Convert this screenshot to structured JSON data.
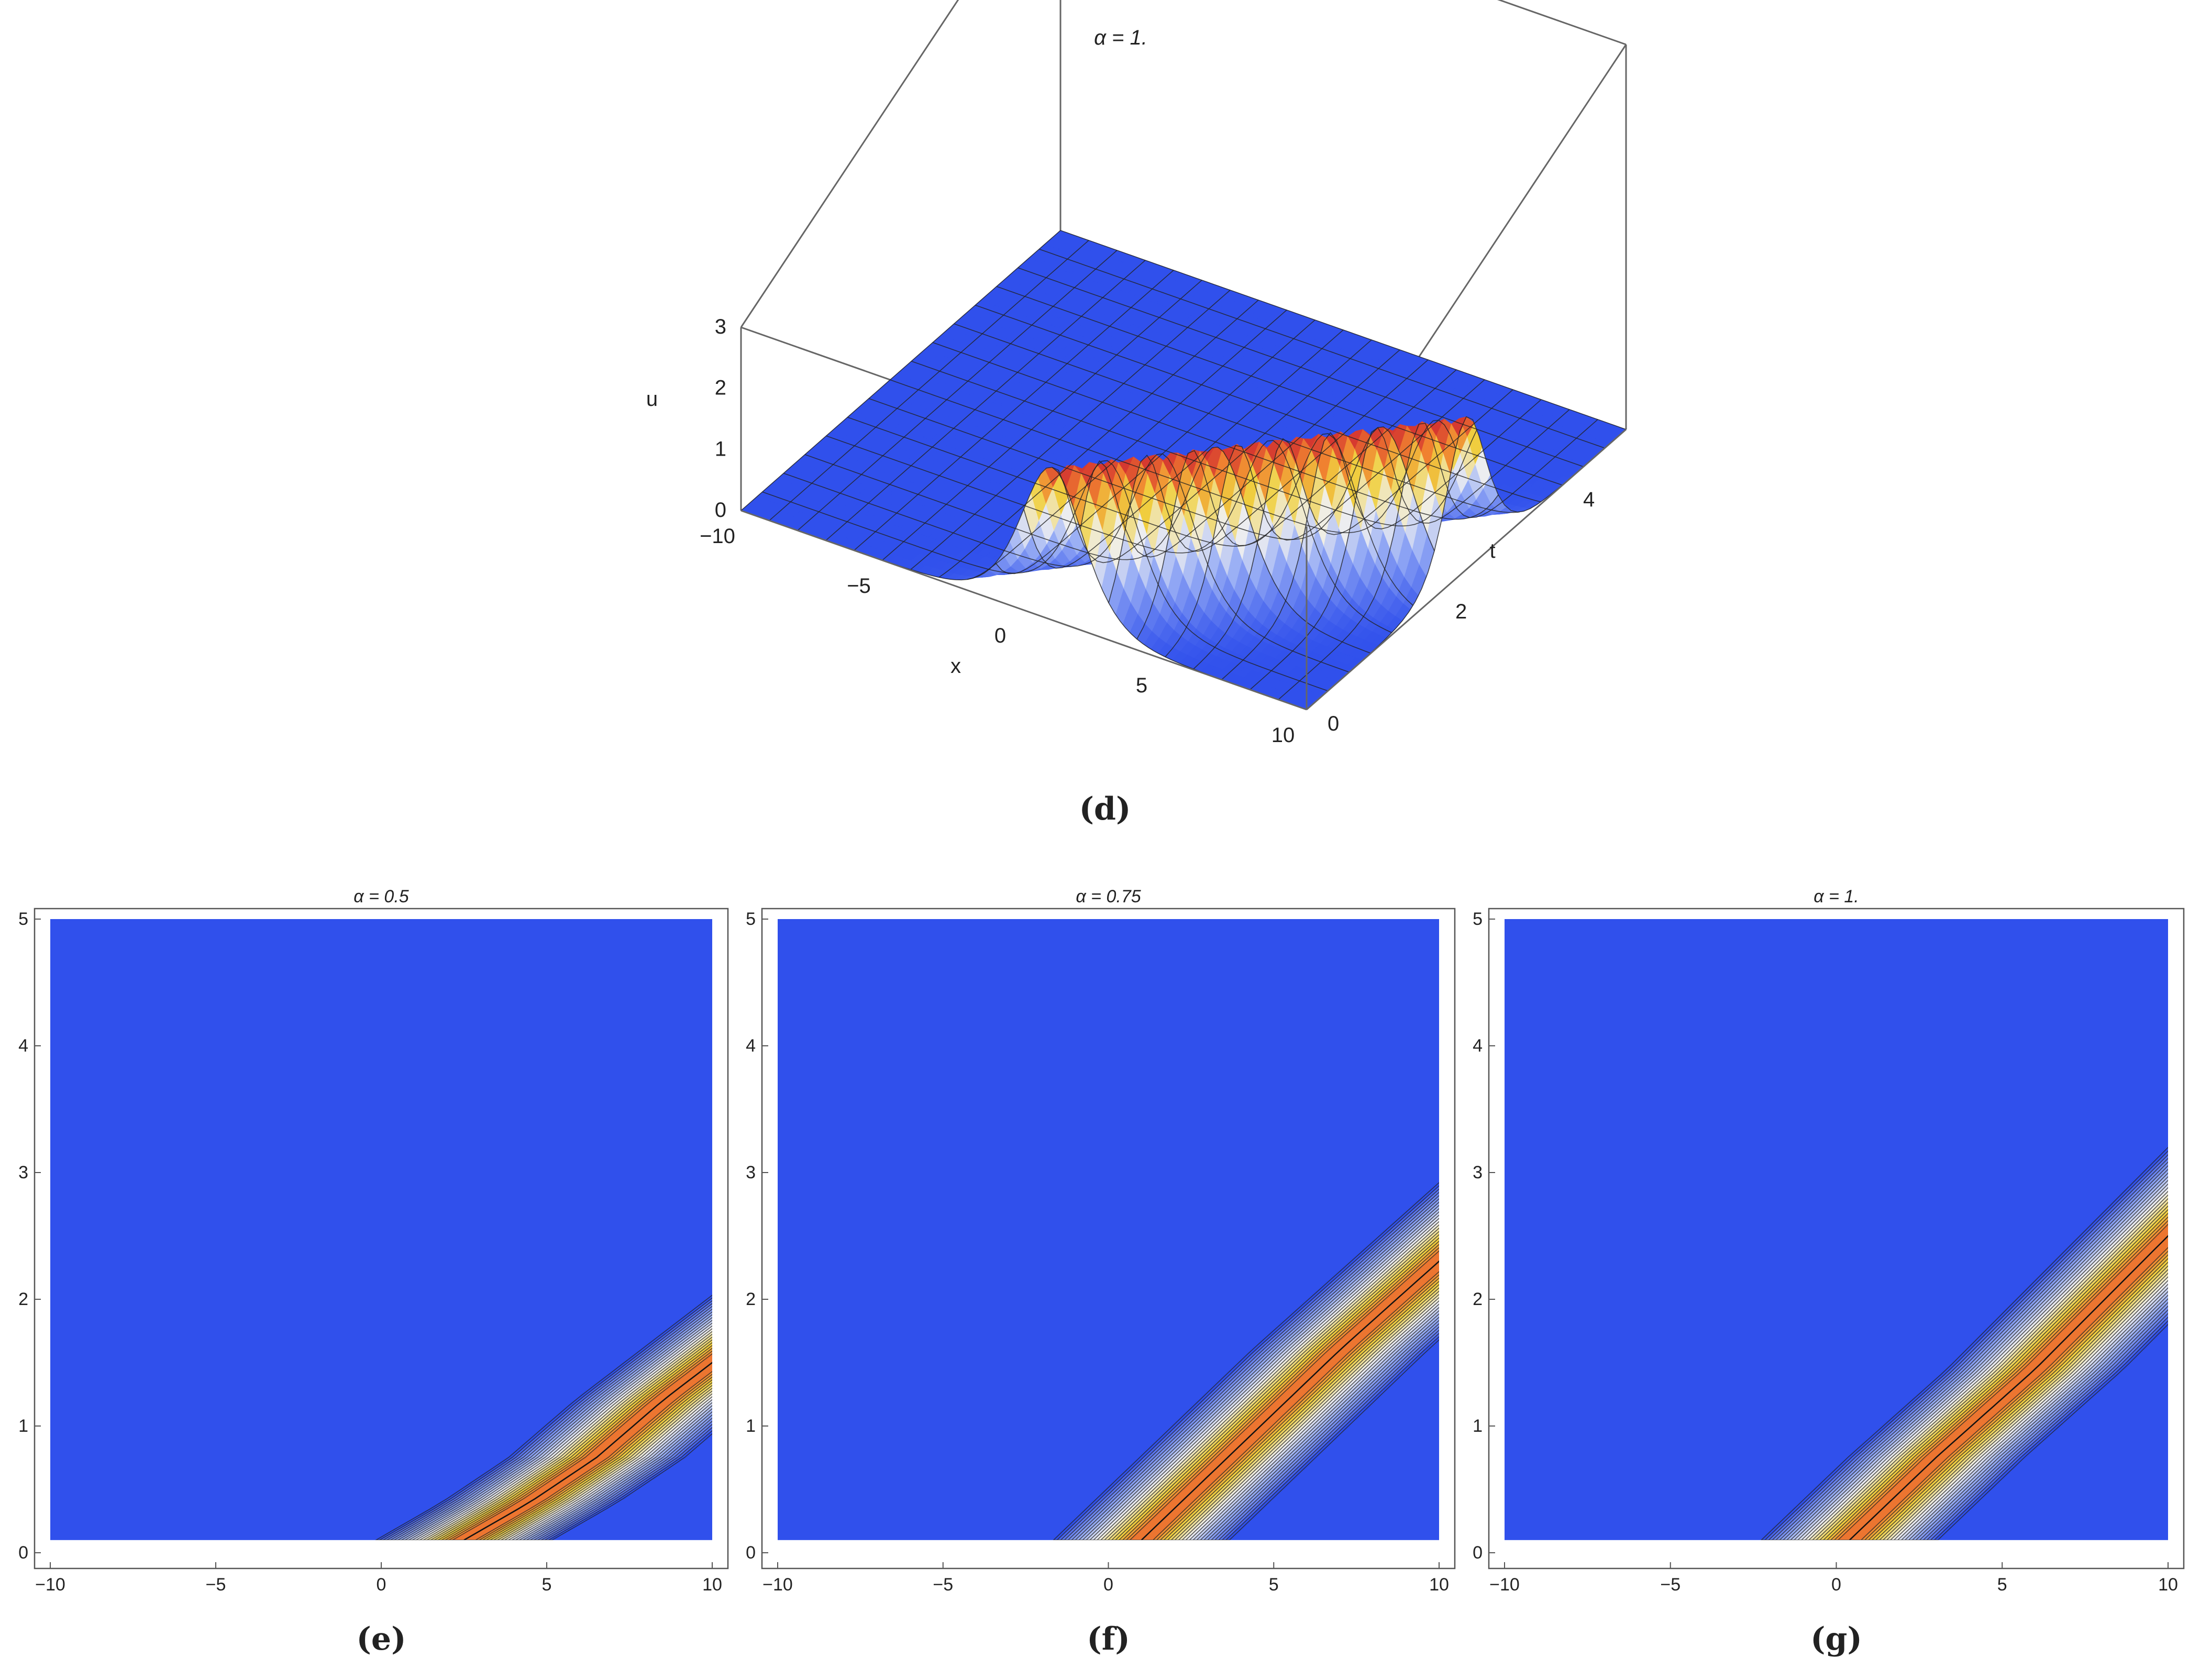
{
  "colors": {
    "background": "#3050ec",
    "band_red": "#cc2030",
    "band_yellow": "#f0d040",
    "band_white": "#f0f0f0",
    "contour_line": "#222222",
    "frame": "#555555",
    "box_edge": "#666666"
  },
  "chart_data": [
    {
      "panel": "d",
      "type": "surface3d",
      "title": "α = 1.",
      "caption": "(d)",
      "xlabel": "x",
      "ylabel": "t",
      "zlabel": "u",
      "x_ticks": [
        "−10",
        "−5",
        "0",
        "5",
        "10"
      ],
      "t_ticks": [
        "0",
        "2",
        "4"
      ],
      "u_ticks": [
        "0",
        "1",
        "2",
        "3"
      ],
      "xlim": [
        -10,
        10
      ],
      "tlim": [
        0,
        5
      ],
      "zlim": [
        0,
        3
      ],
      "alpha": 1.0,
      "peak_amplitude": 2.5,
      "wave_center_x_at_t0": 1,
      "wave_speed": 3.6,
      "wave_width": 1.5
    },
    {
      "panel": "e",
      "type": "contour",
      "title": "α = 0.5",
      "caption": "(e)",
      "x_ticks": [
        "−10",
        "−5",
        "0",
        "5",
        "10"
      ],
      "y_ticks": [
        "0",
        "1",
        "2",
        "3",
        "4",
        "5"
      ],
      "xlim": [
        -10,
        10
      ],
      "ylim": [
        0,
        5
      ],
      "alpha": 0.5,
      "ridge": [
        [
          2.5,
          0.1
        ],
        [
          4.5,
          0.4
        ],
        [
          6.5,
          0.75
        ],
        [
          8.5,
          1.2
        ],
        [
          10,
          1.5
        ]
      ]
    },
    {
      "panel": "f",
      "type": "contour",
      "title": "α = 0.75",
      "caption": "(f)",
      "x_ticks": [
        "−10",
        "−5",
        "0",
        "5",
        "10"
      ],
      "y_ticks": [
        "0",
        "1",
        "2",
        "3",
        "4",
        "5"
      ],
      "xlim": [
        -10,
        10
      ],
      "ylim": [
        0,
        5
      ],
      "alpha": 0.75,
      "ridge": [
        [
          1.0,
          0.1
        ],
        [
          3.0,
          0.6
        ],
        [
          5.0,
          1.1
        ],
        [
          7.0,
          1.6
        ],
        [
          10,
          2.3
        ]
      ]
    },
    {
      "panel": "g",
      "type": "contour",
      "title": "α = 1.",
      "caption": "(g)",
      "x_ticks": [
        "−10",
        "−5",
        "0",
        "5",
        "10"
      ],
      "y_ticks": [
        "0",
        "1",
        "2",
        "3",
        "4",
        "5"
      ],
      "xlim": [
        -10,
        10
      ],
      "ylim": [
        0,
        5
      ],
      "alpha": 1.0,
      "ridge": [
        [
          0.4,
          0.1
        ],
        [
          3.0,
          0.75
        ],
        [
          6.0,
          1.45
        ],
        [
          10,
          2.5
        ]
      ]
    }
  ]
}
